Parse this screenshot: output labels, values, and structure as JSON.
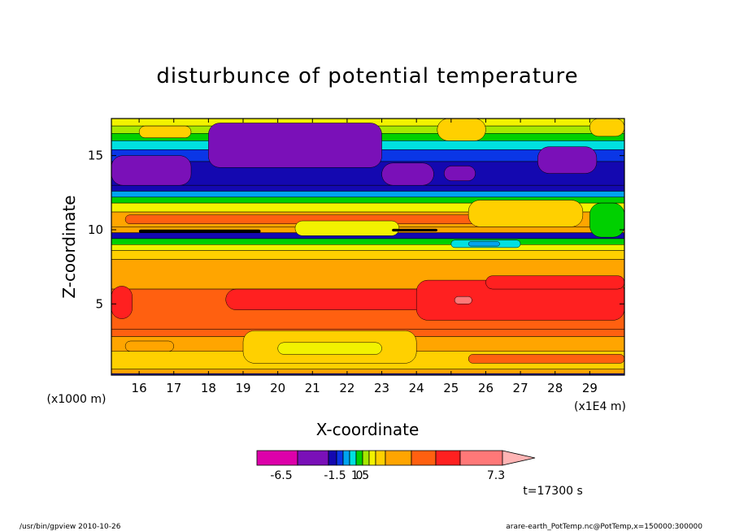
{
  "chart_data": {
    "type": "heatmap",
    "title": "disturbunce of potential temperature",
    "xlabel": "X-coordinate",
    "ylabel": "Z-coordinate",
    "x_unit_left": "(x1000 m)",
    "x_unit_right": "(x1E4 m)",
    "xlim": [
      15.2,
      30.0
    ],
    "ylim": [
      0.2,
      17.5
    ],
    "x_ticks": [
      16,
      17,
      18,
      19,
      20,
      21,
      22,
      23,
      24,
      25,
      26,
      27,
      28,
      29
    ],
    "x_tick_labels": [
      "16",
      "17",
      "18",
      "19",
      "20",
      "21",
      "22",
      "23",
      "24",
      "25",
      "26",
      "27",
      "28",
      "29"
    ],
    "y_ticks": [
      5,
      10,
      15
    ],
    "y_tick_labels": [
      "5",
      "10",
      "15"
    ],
    "time_label": "t=17300 s",
    "colorbar": {
      "tick_values": [
        -6.5,
        -1.5,
        0,
        1.5,
        7.3
      ],
      "tick_labels": [
        "-6.5",
        "-1.5",
        "0",
        "1.5",
        "7.3"
      ],
      "colors": [
        "#dd00aa",
        "#7a10b8",
        "#1408b0",
        "#0a36e6",
        "#00a4f0",
        "#00e0e0",
        "#00d000",
        "#a6e800",
        "#f2f200",
        "#ffd000",
        "#ffa500",
        "#ff6010",
        "#ff2020",
        "#ff7878",
        "#ffb4b4"
      ]
    },
    "bands": [
      {
        "z": 17.5,
        "color": "#f2f200"
      },
      {
        "z": 17.0,
        "color": "#a6e800"
      },
      {
        "z": 16.5,
        "color": "#00d000"
      },
      {
        "z": 16.0,
        "color": "#00e0e0"
      },
      {
        "z": 15.4,
        "color": "#0a36e6"
      },
      {
        "z": 14.6,
        "color": "#1408b0"
      },
      {
        "z": 13.0,
        "color": "#1408b0"
      },
      {
        "z": 12.6,
        "color": "#00a4f0"
      },
      {
        "z": 12.2,
        "color": "#00d000"
      },
      {
        "z": 11.8,
        "color": "#f2f200"
      },
      {
        "z": 11.2,
        "color": "#ffa500"
      },
      {
        "z": 10.2,
        "color": "#ffa500"
      },
      {
        "z": 9.8,
        "color": "#1408b0"
      },
      {
        "z": 9.4,
        "color": "#00d000"
      },
      {
        "z": 9.0,
        "color": "#f2f200"
      },
      {
        "z": 8.6,
        "color": "#ffd000"
      },
      {
        "z": 8.0,
        "color": "#ffa500"
      },
      {
        "z": 6.0,
        "color": "#ff6010"
      },
      {
        "z": 3.3,
        "color": "#ff6010"
      },
      {
        "z": 2.8,
        "color": "#ffa500"
      },
      {
        "z": 1.8,
        "color": "#ffd000"
      },
      {
        "z": 0.6,
        "color": "#ffa500"
      },
      {
        "z": 0.3,
        "color": "#1408b0"
      }
    ],
    "cells": [
      {
        "x0": 18.0,
        "x1": 23.0,
        "z0": 14.2,
        "z1": 17.2,
        "color": "#7a10b8"
      },
      {
        "x0": 15.2,
        "x1": 17.5,
        "z0": 13.0,
        "z1": 15.0,
        "color": "#7a10b8"
      },
      {
        "x0": 23.0,
        "x1": 24.5,
        "z0": 13.0,
        "z1": 14.5,
        "color": "#7a10b8"
      },
      {
        "x0": 24.8,
        "x1": 25.7,
        "z0": 13.3,
        "z1": 14.3,
        "color": "#7a10b8"
      },
      {
        "x0": 27.5,
        "x1": 29.2,
        "z0": 13.8,
        "z1": 15.6,
        "color": "#7a10b8"
      },
      {
        "x0": 16.0,
        "x1": 17.5,
        "z0": 16.2,
        "z1": 17.0,
        "color": "#ffd000"
      },
      {
        "x0": 24.6,
        "x1": 26.0,
        "z0": 16.0,
        "z1": 17.5,
        "color": "#ffd000"
      },
      {
        "x0": 29.0,
        "x1": 30.0,
        "z0": 16.3,
        "z1": 17.5,
        "color": "#ffd000"
      },
      {
        "x0": 15.6,
        "x1": 26.0,
        "z0": 10.4,
        "z1": 11.0,
        "color": "#ff6010"
      },
      {
        "x0": 25.5,
        "x1": 28.8,
        "z0": 10.2,
        "z1": 12.0,
        "color": "#ffd000"
      },
      {
        "x0": 29.0,
        "x1": 30.0,
        "z0": 9.5,
        "z1": 11.8,
        "color": "#00d000"
      },
      {
        "x0": 20.5,
        "x1": 23.5,
        "z0": 9.6,
        "z1": 10.6,
        "color": "#f2f200"
      },
      {
        "x0": 25.0,
        "x1": 27.0,
        "z0": 8.8,
        "z1": 9.3,
        "color": "#00e0e0"
      },
      {
        "x0": 25.5,
        "x1": 26.4,
        "z0": 8.9,
        "z1": 9.2,
        "color": "#00a4f0"
      },
      {
        "x0": 16.0,
        "x1": 19.5,
        "z0": 9.8,
        "z1": 10.0,
        "color": "#000000"
      },
      {
        "x0": 23.3,
        "x1": 24.6,
        "z0": 9.9,
        "z1": 10.05,
        "color": "#000000"
      },
      {
        "x0": 15.2,
        "x1": 15.8,
        "z0": 4.0,
        "z1": 6.2,
        "color": "#ff2020"
      },
      {
        "x0": 18.5,
        "x1": 30.0,
        "z0": 4.6,
        "z1": 6.0,
        "color": "#ff2020"
      },
      {
        "x0": 24.0,
        "x1": 30.0,
        "z0": 3.9,
        "z1": 6.6,
        "color": "#ff2020"
      },
      {
        "x0": 26.0,
        "x1": 30.0,
        "z0": 6.0,
        "z1": 6.9,
        "color": "#ff2020"
      },
      {
        "x0": 25.1,
        "x1": 25.6,
        "z0": 5.0,
        "z1": 5.5,
        "color": "#ff7878"
      },
      {
        "x0": 19.0,
        "x1": 24.0,
        "z0": 1.0,
        "z1": 3.2,
        "color": "#ffd000"
      },
      {
        "x0": 20.0,
        "x1": 23.0,
        "z0": 1.6,
        "z1": 2.4,
        "color": "#f2f200"
      },
      {
        "x0": 25.5,
        "x1": 30.0,
        "z0": 1.0,
        "z1": 1.6,
        "color": "#ff6010"
      },
      {
        "x0": 15.6,
        "x1": 17.0,
        "z0": 1.8,
        "z1": 2.5,
        "color": "#ffa500"
      }
    ]
  },
  "footer": {
    "left": "/usr/bin/gpview   2010-10-26",
    "right": "arare-earth_PotTemp.nc@PotTemp,x=150000:300000"
  }
}
